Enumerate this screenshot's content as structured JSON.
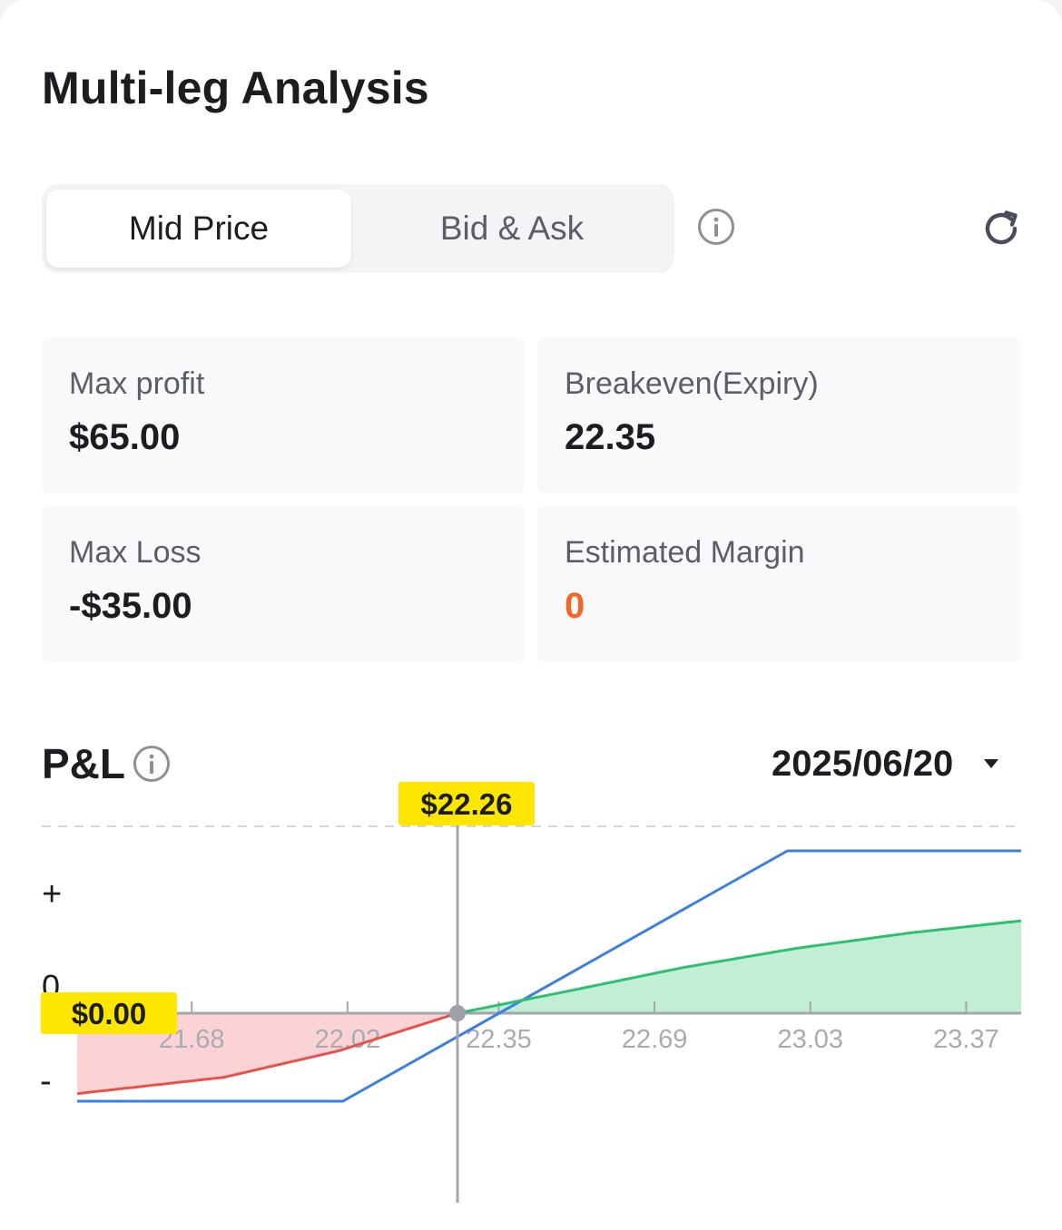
{
  "header": {
    "title": "Multi-leg Analysis"
  },
  "pricing_toggle": {
    "options": [
      "Mid Price",
      "Bid & Ask"
    ],
    "selected": "Mid Price"
  },
  "icons": {
    "pricing_info": "info-circle-icon",
    "refresh": "refresh-icon",
    "pl_info": "info-circle-icon",
    "date_dropdown": "caret-down-icon"
  },
  "stats": {
    "max_profit": {
      "label": "Max profit",
      "value": "$65.00"
    },
    "breakeven": {
      "label": "Breakeven(Expiry)",
      "value": "22.35"
    },
    "max_loss": {
      "label": "Max Loss",
      "value": "-$35.00"
    },
    "estimated_margin": {
      "label": "Estimated Margin",
      "value": "0"
    }
  },
  "pl": {
    "title": "P&L",
    "expiry_date": "2025/06/20"
  },
  "colors": {
    "accent_orange": "#f26522",
    "loss_red": "#e5534b",
    "loss_fill": "#fbd3d4",
    "profit_green": "#2fbf71",
    "profit_fill": "#c2eed6",
    "expiry_blue": "#3d7fe0",
    "highlight_yellow": "#ffe600"
  },
  "chart_data": {
    "type": "line",
    "x_ticks": [
      "21.68",
      "22.02",
      "22.35",
      "22.69",
      "23.03",
      "23.37"
    ],
    "y_labels": {
      "positive": "+",
      "zero": "0",
      "negative": "-"
    },
    "current_price_label": "$22.26",
    "cursor_pnl_label": "$0.00",
    "cursor_price": 22.26,
    "cursor_pnl": 0,
    "breakeven": 22.35,
    "max_profit": 65,
    "max_loss": -35,
    "xlim": [
      21.43,
      23.49
    ],
    "series": [
      {
        "x": [
          21.43,
          22.01,
          22.98,
          23.49
        ],
        "y": [
          -35,
          -35,
          65,
          65
        ]
      },
      {
        "x": [
          21.43,
          21.75,
          22.0,
          22.26,
          22.5,
          22.75,
          23.0,
          23.25,
          23.49
        ],
        "y": [
          -32,
          -25.5,
          -15,
          0,
          8.8,
          18.2,
          26,
          32.2,
          37
        ]
      }
    ]
  }
}
